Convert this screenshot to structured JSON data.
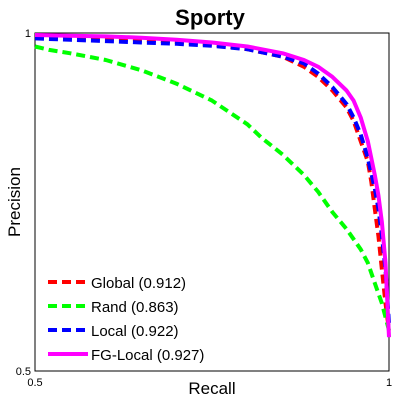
{
  "chart_data": {
    "type": "line",
    "title": "Sporty",
    "xlabel": "Recall",
    "ylabel": "Precision",
    "xlim": [
      0.5,
      1
    ],
    "ylim": [
      0.5,
      1
    ],
    "xticks": [
      "0.5",
      "1"
    ],
    "yticks": [
      "0.5",
      "1"
    ],
    "grid": false,
    "legend_position": "bottom-left",
    "series": [
      {
        "name": "Global (0.912)",
        "color": "#ff0000",
        "style": "dashed",
        "x": [
          0.5,
          0.55,
          0.6,
          0.65,
          0.7,
          0.75,
          0.8,
          0.85,
          0.88,
          0.9,
          0.92,
          0.94,
          0.95,
          0.96,
          0.97,
          0.975,
          0.98,
          0.985,
          0.99,
          0.995,
          1.0
        ],
        "y": [
          0.996,
          0.995,
          0.993,
          0.99,
          0.987,
          0.983,
          0.976,
          0.965,
          0.95,
          0.935,
          0.915,
          0.89,
          0.87,
          0.84,
          0.81,
          0.78,
          0.74,
          0.7,
          0.65,
          0.6,
          0.56
        ]
      },
      {
        "name": "Rand (0.863)",
        "color": "#00ff00",
        "style": "dashed",
        "x": [
          0.5,
          0.52,
          0.55,
          0.6,
          0.65,
          0.7,
          0.75,
          0.8,
          0.82,
          0.85,
          0.88,
          0.9,
          0.92,
          0.94,
          0.96,
          0.97,
          0.98,
          0.99,
          1.0
        ],
        "y": [
          0.98,
          0.975,
          0.97,
          0.96,
          0.945,
          0.925,
          0.9,
          0.865,
          0.845,
          0.82,
          0.79,
          0.765,
          0.735,
          0.71,
          0.68,
          0.66,
          0.63,
          0.6,
          0.56
        ]
      },
      {
        "name": "Local (0.922)",
        "color": "#0000ff",
        "style": "dashed",
        "x": [
          0.5,
          0.55,
          0.6,
          0.65,
          0.7,
          0.75,
          0.8,
          0.85,
          0.88,
          0.9,
          0.92,
          0.94,
          0.95,
          0.96,
          0.97,
          0.98,
          0.985,
          0.99,
          0.995,
          1.0
        ],
        "y": [
          0.992,
          0.99,
          0.988,
          0.986,
          0.984,
          0.981,
          0.976,
          0.965,
          0.955,
          0.94,
          0.92,
          0.895,
          0.875,
          0.85,
          0.815,
          0.77,
          0.74,
          0.7,
          0.65,
          0.57
        ]
      },
      {
        "name": "FG-Local (0.927)",
        "color": "#ff00ff",
        "style": "solid",
        "x": [
          0.5,
          0.55,
          0.6,
          0.65,
          0.7,
          0.75,
          0.8,
          0.85,
          0.88,
          0.9,
          0.92,
          0.94,
          0.95,
          0.96,
          0.97,
          0.98,
          0.985,
          0.99,
          0.995,
          1.0
        ],
        "y": [
          0.997,
          0.996,
          0.995,
          0.993,
          0.99,
          0.986,
          0.98,
          0.97,
          0.96,
          0.95,
          0.935,
          0.915,
          0.9,
          0.875,
          0.84,
          0.79,
          0.76,
          0.72,
          0.66,
          0.55
        ]
      }
    ]
  }
}
